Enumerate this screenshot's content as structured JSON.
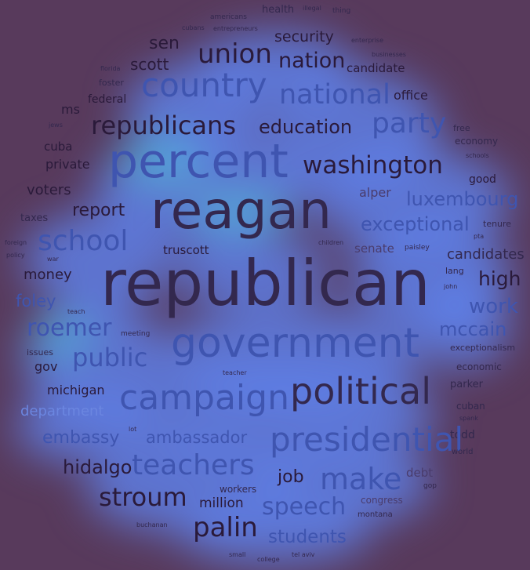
{
  "image": {
    "type": "word-cloud",
    "colors": {
      "background": "#583a5c",
      "glow": "#5f84f0",
      "glow_hot": "#4cc7d9",
      "word_dark": "#2a1a3a",
      "word_blue": "#3f55b0",
      "word_light": "#6b86e0"
    }
  },
  "words": {
    "health": "health",
    "illegal": "illegal",
    "thing": "thing",
    "americans": "americans",
    "cubans": "cubans",
    "entrepreneurs": "entrepreneurs",
    "sen": "sen",
    "security": "security",
    "enterprise": "enterprise",
    "businesses": "businesses",
    "union": "union",
    "nation": "nation",
    "candidate": "candidate",
    "scott": "scott",
    "florida": "florida",
    "country": "country",
    "foster": "foster",
    "national": "national",
    "office": "office",
    "federal": "federal",
    "ms": "ms",
    "party": "party",
    "republicans": "republicans",
    "education": "education",
    "jews": "jews",
    "free": "free",
    "economy": "economy",
    "cuba": "cuba",
    "percent": "percent",
    "schools": "schools",
    "private": "private",
    "washington": "washington",
    "good": "good",
    "voters": "voters",
    "alper": "alper",
    "luxembourg": "luxembourg",
    "reagan": "reagan",
    "report": "report",
    "taxes": "taxes",
    "exceptional": "exceptional",
    "tenure": "tenure",
    "school": "school",
    "pta": "pta",
    "foreign": "foreign",
    "policy": "policy",
    "war": "war",
    "truscott": "truscott",
    "children": "children",
    "senate": "senate",
    "paisley": "paisley",
    "candidates": "candidates",
    "money": "money",
    "republican": "republican",
    "lang": "lang",
    "high": "high",
    "john": "john",
    "foley": "foley",
    "work": "work",
    "teach": "teach",
    "roemer": "roemer",
    "meeting": "meeting",
    "mccain": "mccain",
    "government": "government",
    "issues": "issues",
    "exceptionalism": "exceptionalism",
    "public": "public",
    "gov": "gov",
    "economic": "economic",
    "teacher": "teacher",
    "michigan": "michigan",
    "parker": "parker",
    "political": "political",
    "campaign": "campaign",
    "department": "department",
    "cuban": "cuban",
    "spank": "spank",
    "lot": "lot",
    "embassy": "embassy",
    "ambassador": "ambassador",
    "todd": "todd",
    "presidential": "presidential",
    "world": "world",
    "hidalgo": "hidalgo",
    "teachers": "teachers",
    "debt": "debt",
    "job": "job",
    "make": "make",
    "gop": "gop",
    "workers": "workers",
    "stroum": "stroum",
    "million": "million",
    "congress": "congress",
    "speech": "speech",
    "montana": "montana",
    "buchanan": "buchanan",
    "palin": "palin",
    "students": "students",
    "small": "small",
    "college": "college",
    "tel_aviv": "tel aviv"
  }
}
